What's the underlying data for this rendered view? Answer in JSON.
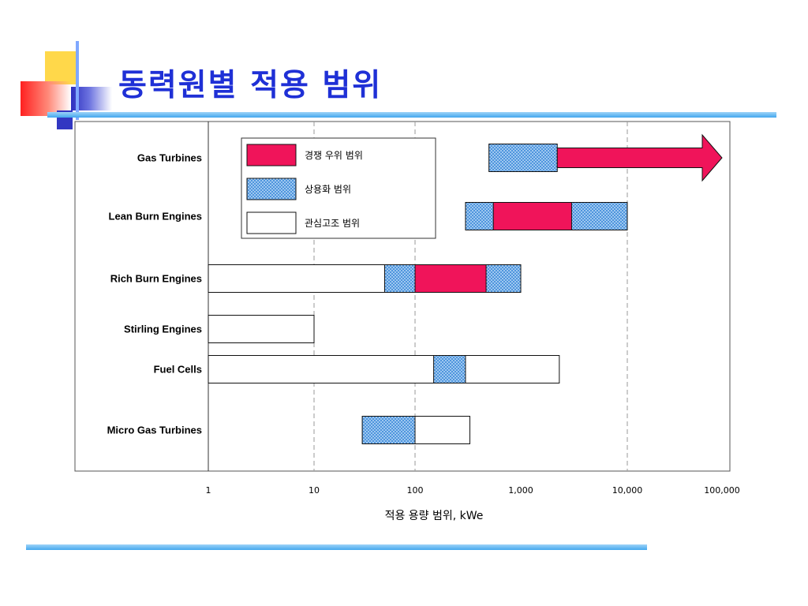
{
  "slide": {
    "title": "동력원별 적용 범위"
  },
  "chart_data": {
    "type": "range-bar",
    "x_scale": "log",
    "xlim": [
      1,
      100000
    ],
    "xticks": [
      {
        "value": 1,
        "label": "1"
      },
      {
        "value": 10,
        "label": "10"
      },
      {
        "value": 100,
        "label": "100"
      },
      {
        "value": 1000,
        "label": "1,000"
      },
      {
        "value": 10000,
        "label": "10,000"
      },
      {
        "value": 100000,
        "label": "100,000"
      }
    ],
    "gridlines_at": [
      10,
      100,
      10000
    ],
    "xlabel": "적용 용량 범위, kWe",
    "legend": {
      "placement": "top-left",
      "items": [
        {
          "key": "competitive",
          "label": "경쟁 우위 범위",
          "fill": "#f0145a"
        },
        {
          "key": "commercial",
          "label": "상용화 범위",
          "fill": "#4a8fd6",
          "pattern": "dotted"
        },
        {
          "key": "interest",
          "label": "관심고조 범위",
          "fill": "#ffffff"
        }
      ]
    },
    "rows": [
      {
        "label": "Gas Turbines",
        "segments": [
          {
            "kind": "commercial",
            "from": 500,
            "to": 2200
          },
          {
            "kind": "competitive",
            "from": 2200,
            "to": 100000,
            "arrow": true
          }
        ]
      },
      {
        "label": "Lean Burn Engines",
        "segments": [
          {
            "kind": "commercial",
            "from": 300,
            "to": 10000
          },
          {
            "kind": "competitive",
            "from": 550,
            "to": 3000
          }
        ]
      },
      {
        "label": "Rich Burn Engines",
        "segments": [
          {
            "kind": "interest",
            "from": 1,
            "to": 50
          },
          {
            "kind": "commercial",
            "from": 50,
            "to": 1000
          },
          {
            "kind": "competitive",
            "from": 100,
            "to": 470
          }
        ]
      },
      {
        "label": "Stirling Engines",
        "segments": [
          {
            "kind": "interest",
            "from": 1,
            "to": 10
          }
        ]
      },
      {
        "label": "Fuel Cells",
        "segments": [
          {
            "kind": "interest",
            "from": 1,
            "to": 2300
          },
          {
            "kind": "commercial",
            "from": 150,
            "to": 300
          }
        ]
      },
      {
        "label": "Micro Gas Turbines",
        "segments": [
          {
            "kind": "commercial",
            "from": 30,
            "to": 100
          },
          {
            "kind": "interest",
            "from": 100,
            "to": 330
          }
        ]
      }
    ]
  }
}
